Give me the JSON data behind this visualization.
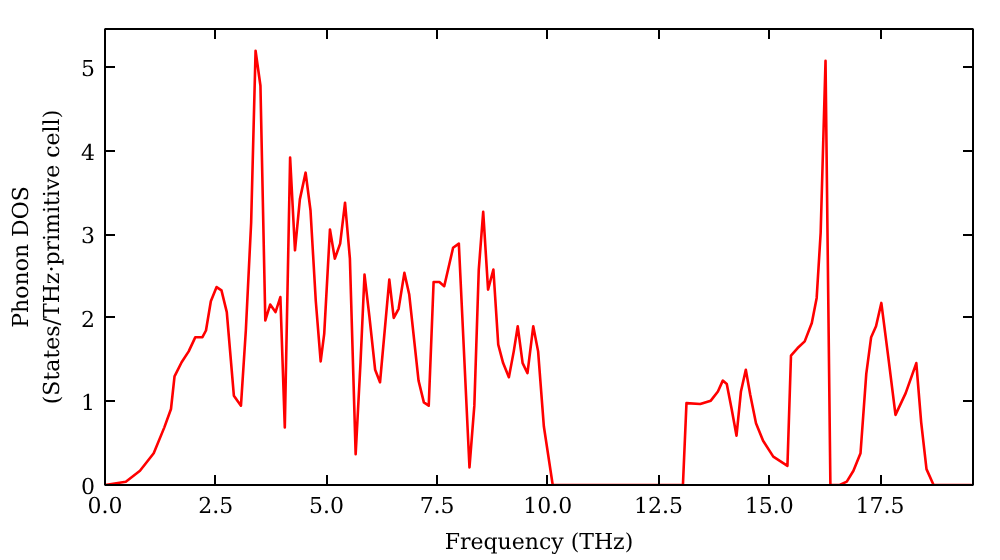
{
  "chart_data": {
    "type": "line",
    "xlabel": "Frequency (THz)",
    "ylabel": "Phonon DOS\n(States/THz·primitive cell)",
    "xlim": [
      0,
      19.6
    ],
    "ylim": [
      0,
      5.46
    ],
    "xticks": [
      {
        "value": 0,
        "label": "0.0"
      },
      {
        "value": 2.5,
        "label": "2.5"
      },
      {
        "value": 5,
        "label": "5.0"
      },
      {
        "value": 7.5,
        "label": "7.5"
      },
      {
        "value": 10,
        "label": "10.0"
      },
      {
        "value": 12.5,
        "label": "12.5"
      },
      {
        "value": 15,
        "label": "15.0"
      },
      {
        "value": 17.5,
        "label": "17.5"
      }
    ],
    "yticks": [
      0,
      1,
      2,
      3,
      4,
      5
    ],
    "grid": false,
    "series": [
      {
        "color": "#ff0000",
        "x": [
          0,
          0.47,
          0.79,
          1.1,
          1.34,
          1.49,
          1.57,
          1.73,
          1.89,
          2.04,
          2.2,
          2.28,
          2.39,
          2.52,
          2.63,
          2.75,
          2.91,
          3.07,
          3.18,
          3.3,
          3.4,
          3.51,
          3.62,
          3.73,
          3.85,
          3.96,
          4.06,
          4.18,
          4.29,
          4.4,
          4.53,
          4.64,
          4.76,
          4.87,
          4.95,
          5.08,
          5.19,
          5.31,
          5.42,
          5.53,
          5.66,
          5.77,
          5.86,
          5.97,
          6.1,
          6.21,
          6.42,
          6.52,
          6.63,
          6.76,
          6.87,
          7.08,
          7.2,
          7.31,
          7.42,
          7.55,
          7.66,
          7.86,
          7.99,
          8.23,
          8.34,
          8.44,
          8.54,
          8.65,
          8.77,
          8.88,
          8.99,
          9.12,
          9.23,
          9.32,
          9.43,
          9.54,
          9.67,
          9.78,
          9.91,
          10.11,
          13.05,
          13.13,
          13.44,
          13.68,
          13.84,
          13.95,
          14.04,
          14.15,
          14.26,
          14.36,
          14.47,
          14.57,
          14.7,
          14.86,
          15.09,
          15.41,
          15.49,
          15.64,
          15.8,
          15.96,
          16.07,
          16.16,
          16.27,
          16.38,
          16.59,
          16.75,
          16.9,
          17.06,
          17.19,
          17.3,
          17.41,
          17.53,
          17.69,
          17.85,
          18.08,
          18.32,
          18.43,
          18.55,
          18.71,
          19.57
        ],
        "values": [
          0,
          0.04,
          0.17,
          0.38,
          0.69,
          0.91,
          1.3,
          1.47,
          1.6,
          1.77,
          1.77,
          1.85,
          2.2,
          2.37,
          2.33,
          2.07,
          1.07,
          0.95,
          1.85,
          3.14,
          5.2,
          4.78,
          1.97,
          2.16,
          2.07,
          2.25,
          0.69,
          3.92,
          2.81,
          3.42,
          3.74,
          3.29,
          2.2,
          1.48,
          1.81,
          3.06,
          2.71,
          2.89,
          3.38,
          2.71,
          0.37,
          1.47,
          2.52,
          2.02,
          1.38,
          1.23,
          2.46,
          2.0,
          2.11,
          2.54,
          2.28,
          1.25,
          0.99,
          0.95,
          2.43,
          2.43,
          2.38,
          2.84,
          2.89,
          0.21,
          0.95,
          2.58,
          3.27,
          2.34,
          2.58,
          1.68,
          1.46,
          1.29,
          1.6,
          1.9,
          1.46,
          1.34,
          1.9,
          1.6,
          0.7,
          0,
          0,
          0.98,
          0.97,
          1.01,
          1.12,
          1.25,
          1.21,
          0.91,
          0.59,
          1.12,
          1.38,
          1.08,
          0.74,
          0.53,
          0.34,
          0.23,
          1.55,
          1.64,
          1.72,
          1.94,
          2.24,
          3.02,
          5.08,
          0,
          0,
          0.04,
          0.17,
          0.38,
          1.33,
          1.77,
          1.9,
          2.18,
          1.52,
          0.84,
          1.1,
          1.46,
          0.75,
          0.19,
          0,
          0
        ]
      }
    ]
  }
}
